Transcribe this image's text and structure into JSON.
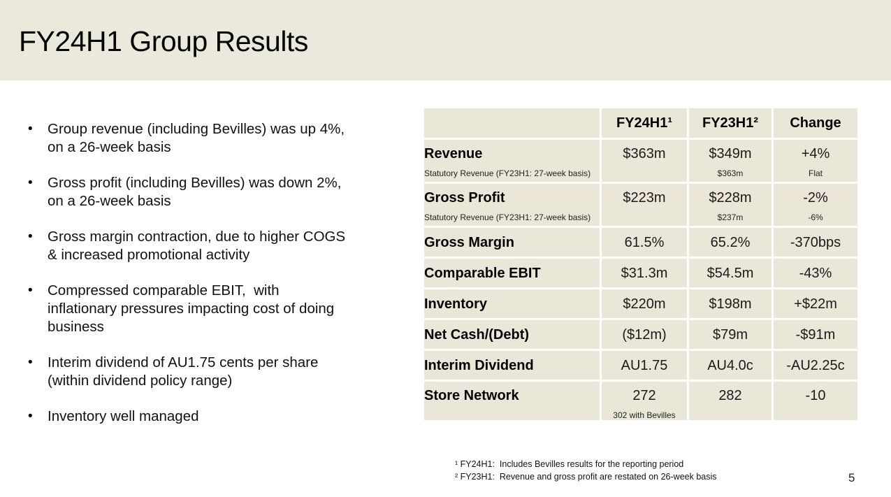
{
  "header": {
    "title": "FY24H1 Group Results"
  },
  "bullets": {
    "marker": "•",
    "items": [
      {
        "text": "Group revenue (including Bevilles) was up 4%,\non a 26-week basis"
      },
      {
        "text": "Gross profit (including Bevilles) was down 2%,\non a 26-week basis"
      },
      {
        "text": "Gross margin contraction, due to higher COGS\n& increased promotional activity"
      },
      {
        "text": "Compressed comparable EBIT,  with\ninflationary pressures impacting cost of doing\nbusiness"
      },
      {
        "text": "Interim dividend of AU1.75 cents per share\n(within dividend policy range)"
      },
      {
        "text": "Inventory well managed"
      }
    ]
  },
  "table": {
    "columns": [
      "",
      "FY24H1¹",
      "FY23H1²",
      "Change"
    ],
    "rows": [
      {
        "label": "Revenue",
        "sublabel": "Statutory Revenue (FY23H1: 27-week basis)",
        "fy24": "$363m",
        "fy23": "$349m",
        "fy23_sub": "$363m",
        "change": "+4%",
        "change_sub": "Flat"
      },
      {
        "label": "Gross Profit",
        "sublabel": "Statutory Revenue (FY23H1: 27-week basis)",
        "fy24": "$223m",
        "fy23": "$228m",
        "fy23_sub": "$237m",
        "change": "-2%",
        "change_sub": "-6%"
      },
      {
        "label": "Gross Margin",
        "fy24": "61.5%",
        "fy23": "65.2%",
        "change": "-370bps"
      },
      {
        "label": "Comparable EBIT",
        "fy24": "$31.3m",
        "fy23": "$54.5m",
        "change": "-43%"
      },
      {
        "label": "Inventory",
        "fy24": "$220m",
        "fy23": "$198m",
        "change": "+$22m"
      },
      {
        "label": "Net Cash/(Debt)",
        "fy24": "($12m)",
        "fy23": "$79m",
        "change": "-$91m"
      },
      {
        "label": "Interim Dividend",
        "fy24": "AU1.75",
        "fy23": "AU4.0c",
        "change": "-AU2.25c"
      },
      {
        "label": "Store Network",
        "fy24": "272",
        "fy24_sub": "302 with Bevilles",
        "fy23": "282",
        "change": "-10"
      }
    ]
  },
  "footnotes": [
    "¹ FY24H1:  Includes Bevilles results for the reporting period",
    "² FY23H1:  Revenue and gross profit are restated on 26-week basis"
  ],
  "page_number": "5",
  "colors": {
    "band": "#ebe9dc",
    "cell": "#eae7d9",
    "text": "#1a1a1a",
    "background": "#ffffff"
  }
}
